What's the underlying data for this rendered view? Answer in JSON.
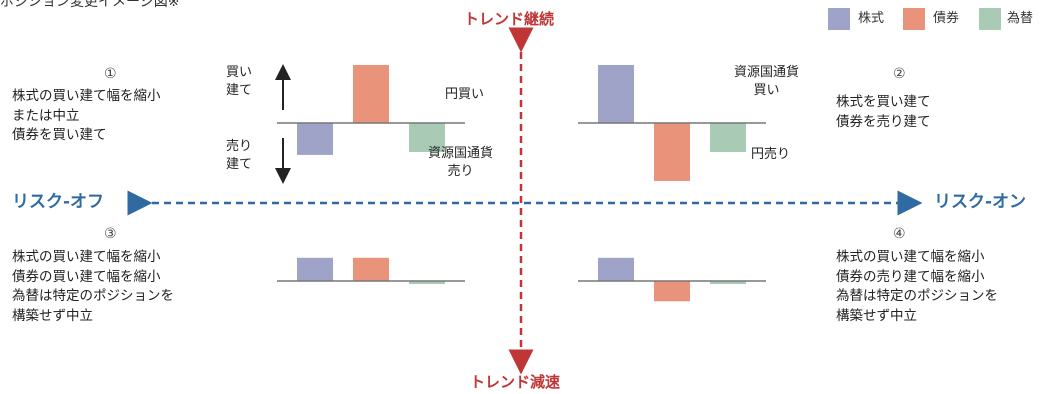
{
  "header": {
    "title": "ポジション変更イメージ図※"
  },
  "colors": {
    "stocks": "#9ea3c7",
    "bonds": "#e8937a",
    "fx": "#a9cbb6",
    "trend_axis": "#c03535",
    "risk_axis": "#2f6aa3",
    "baseline": "#777777"
  },
  "legend": {
    "stocks": "株式",
    "bonds": "債券",
    "fx": "為替"
  },
  "axes": {
    "trend_up": "トレンド継続",
    "trend_down": "トレンド減速",
    "risk_off": "リスク-オフ",
    "risk_on": "リスク-オン"
  },
  "quadrants": [
    {
      "num": "①",
      "desc": "株式の買い建て幅を縮小\nまたは中立\n債券を買い建て",
      "values": {
        "stocks": -0.55,
        "bonds": 1.0,
        "fx": -0.5
      }
    },
    {
      "num": "②",
      "desc": "株式を買い建て\n債券を売り建て",
      "values": {
        "stocks": 1.0,
        "bonds": -1.0,
        "fx": -0.5
      }
    },
    {
      "num": "③",
      "desc": "株式の買い建て幅を縮小\n債券の買い建て幅を縮小\n為替は特定のポジションを\n構築せず中立",
      "values": {
        "stocks": 0.4,
        "bonds": 0.4,
        "fx": -0.05
      }
    },
    {
      "num": "④",
      "desc": "株式の買い建て幅を縮小\n債券の売り建て幅を縮小\n為替は特定のポジションを\n構築せず中立",
      "values": {
        "stocks": 0.4,
        "bonds": -0.35,
        "fx": -0.05
      }
    }
  ],
  "labels": {
    "buy_build": "買い\n建て",
    "sell_build": "売り\n建て",
    "yen_buy": "円買い",
    "resource_sell": "資源国通貨\n売り",
    "resource_buy": "資源国通貨\n買い",
    "yen_sell": "円売り"
  }
}
